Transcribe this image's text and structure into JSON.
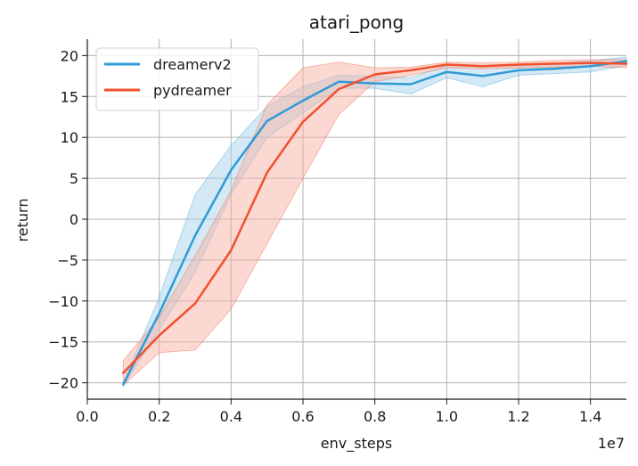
{
  "chart_data": {
    "type": "line",
    "title": "atari_pong",
    "xlabel": "env_steps",
    "ylabel": "return",
    "x_offset_label": "1e7",
    "xlim": [
      0.0,
      1.5
    ],
    "ylim": [
      -22,
      22
    ],
    "x_ticks": [
      0.0,
      0.2,
      0.4,
      0.6,
      0.8,
      1.0,
      1.2,
      1.4
    ],
    "x_tick_labels": [
      "0.0",
      "0.2",
      "0.4",
      "0.6",
      "0.8",
      "1.0",
      "1.2",
      "1.4"
    ],
    "y_ticks": [
      -20,
      -15,
      -10,
      -5,
      0,
      5,
      10,
      15,
      20
    ],
    "y_tick_labels": [
      "−20",
      "−15",
      "−10",
      "−5",
      "0",
      "5",
      "10",
      "15",
      "20"
    ],
    "grid": true,
    "legend_position": "top-left",
    "series": [
      {
        "name": "dreamerv2",
        "color": "#2f9bd6",
        "fill_color": "#a9d4ec",
        "x": [
          0.1,
          0.2,
          0.3,
          0.4,
          0.5,
          0.6,
          0.7,
          0.8,
          0.9,
          1.0,
          1.1,
          1.2,
          1.3,
          1.4,
          1.5
        ],
        "values": [
          -20.2,
          -11.5,
          -2.0,
          6.0,
          12.0,
          14.5,
          16.8,
          16.6,
          16.5,
          18.0,
          17.5,
          18.2,
          18.4,
          18.7,
          19.3
        ],
        "lower": [
          -20.4,
          -13.5,
          -6.5,
          3.0,
          10.0,
          13.0,
          16.0,
          16.0,
          15.3,
          17.3,
          16.2,
          17.6,
          17.8,
          18.0,
          18.8
        ],
        "upper": [
          -20.0,
          -9.5,
          3.0,
          9.0,
          13.8,
          16.2,
          17.6,
          17.5,
          17.3,
          18.8,
          18.8,
          18.8,
          19.0,
          19.4,
          19.8
        ]
      },
      {
        "name": "pydreamer",
        "color": "#f0502f",
        "fill_color": "#f8b4a6",
        "x": [
          0.1,
          0.2,
          0.3,
          0.4,
          0.5,
          0.6,
          0.7,
          0.8,
          0.9,
          1.0,
          1.1,
          1.2,
          1.3,
          1.4,
          1.5
        ],
        "values": [
          -18.8,
          -14.2,
          -10.3,
          -3.8,
          5.7,
          11.9,
          15.9,
          17.7,
          18.2,
          18.9,
          18.7,
          18.9,
          19.0,
          19.1,
          19.0
        ],
        "lower": [
          -20.3,
          -16.3,
          -16.0,
          -11.0,
          -3.0,
          5.0,
          12.8,
          16.8,
          17.6,
          18.5,
          18.4,
          18.5,
          18.6,
          18.7,
          18.5
        ],
        "upper": [
          -17.3,
          -12.0,
          -4.5,
          3.5,
          14.0,
          18.5,
          19.2,
          18.5,
          18.6,
          19.2,
          19.1,
          19.2,
          19.4,
          19.5,
          19.5
        ]
      }
    ]
  }
}
